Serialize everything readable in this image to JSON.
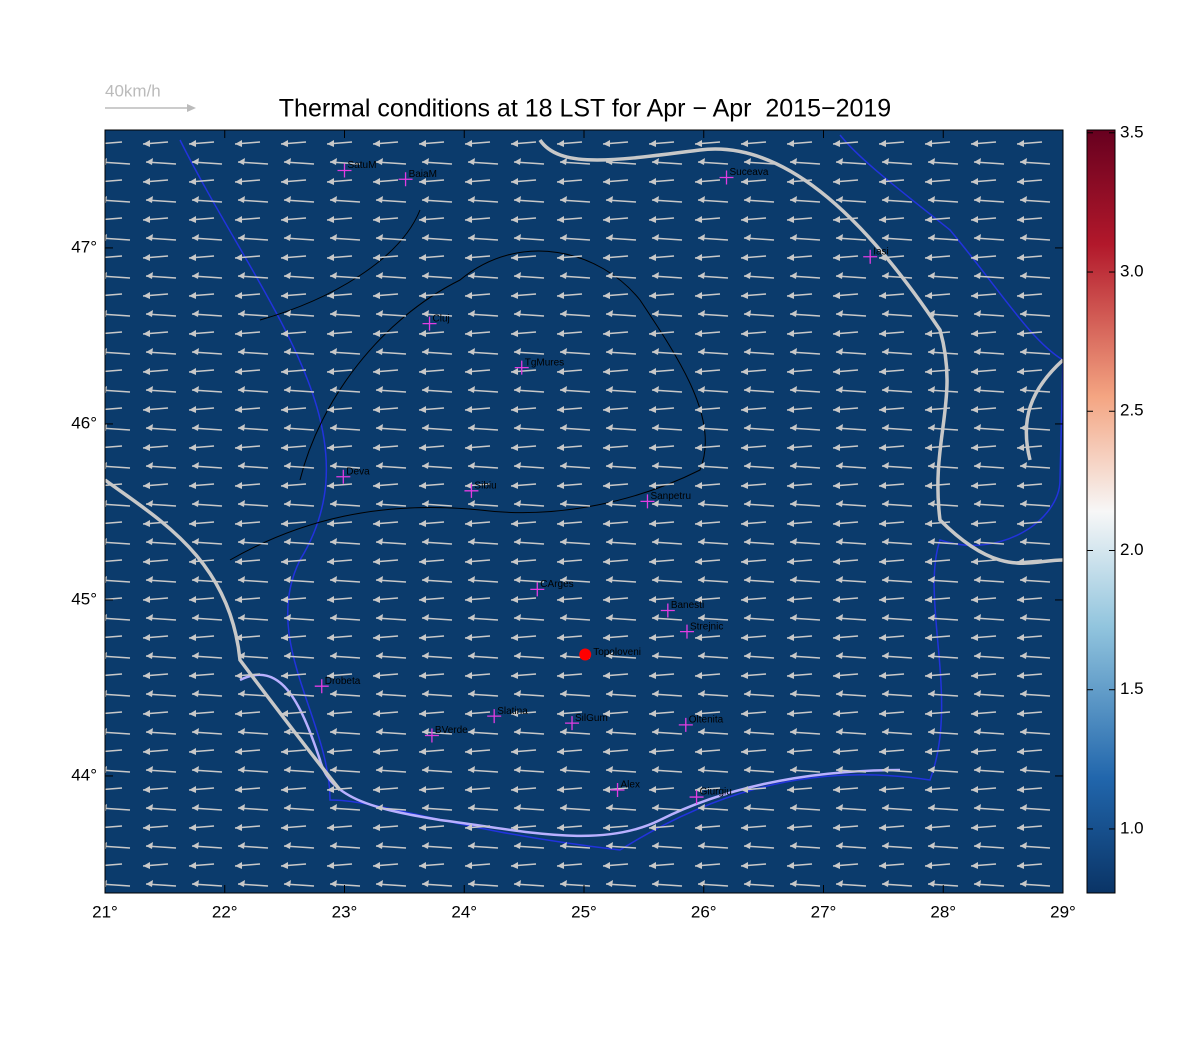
{
  "title": "Thermal conditions at 18 LST for Apr − Apr  2015−2019",
  "vector_key": {
    "label": "40km/h"
  },
  "map": {
    "xlim": [
      21,
      29
    ],
    "ylim": [
      43.335,
      47.67
    ],
    "background": "#0b3b6c",
    "xticks": [
      {
        "value": 21,
        "label": "21°"
      },
      {
        "value": 22,
        "label": "22°"
      },
      {
        "value": 23,
        "label": "23°"
      },
      {
        "value": 24,
        "label": "24°"
      },
      {
        "value": 25,
        "label": "25°"
      },
      {
        "value": 26,
        "label": "26°"
      },
      {
        "value": 27,
        "label": "27°"
      },
      {
        "value": 28,
        "label": "28°"
      },
      {
        "value": 29,
        "label": "29°"
      }
    ],
    "yticks": [
      {
        "value": 44,
        "label": "44°"
      },
      {
        "value": 45,
        "label": "45°"
      },
      {
        "value": 46,
        "label": "46°"
      },
      {
        "value": 47,
        "label": "47°"
      }
    ]
  },
  "stations": [
    {
      "name": "SatuM",
      "lon": 23.0,
      "lat": 47.44
    },
    {
      "name": "BaiaM",
      "lon": 23.51,
      "lat": 47.39
    },
    {
      "name": "Suceava",
      "lon": 26.19,
      "lat": 47.4
    },
    {
      "name": "Iasi",
      "lon": 27.39,
      "lat": 46.95
    },
    {
      "name": "Cluj",
      "lon": 23.71,
      "lat": 46.57
    },
    {
      "name": "TgMures",
      "lon": 24.48,
      "lat": 46.32
    },
    {
      "name": "Deva",
      "lon": 22.99,
      "lat": 45.7
    },
    {
      "name": "Sibiu",
      "lon": 24.06,
      "lat": 45.62
    },
    {
      "name": "Sanpetru",
      "lon": 25.53,
      "lat": 45.56
    },
    {
      "name": "CArges",
      "lon": 24.61,
      "lat": 45.06
    },
    {
      "name": "Banesti",
      "lon": 25.7,
      "lat": 44.94
    },
    {
      "name": "Strejnic",
      "lon": 25.86,
      "lat": 44.82
    },
    {
      "name": "Drobeta",
      "lon": 22.81,
      "lat": 44.51
    },
    {
      "name": "Slatina",
      "lon": 24.25,
      "lat": 44.34
    },
    {
      "name": "SilGum",
      "lon": 24.9,
      "lat": 44.3
    },
    {
      "name": "Oltenita",
      "lon": 25.85,
      "lat": 44.29
    },
    {
      "name": "BVerde",
      "lon": 23.73,
      "lat": 44.23
    },
    {
      "name": "Alex",
      "lon": 25.28,
      "lat": 43.92
    },
    {
      "name": "Giurgiu",
      "lon": 25.94,
      "lat": 43.88
    }
  ],
  "site": {
    "name": "Topoloveni",
    "lon": 25.01,
    "lat": 44.69,
    "color": "#ff0000"
  },
  "colorbar": {
    "lim": [
      0.77,
      3.51
    ],
    "ticks": [
      {
        "value": 1,
        "label": "1.0"
      },
      {
        "value": 1.5,
        "label": "1.5"
      },
      {
        "value": 2,
        "label": "2.0"
      },
      {
        "value": 2.5,
        "label": "2.5"
      },
      {
        "value": 3,
        "label": "3.0"
      },
      3.5
    ]
  }
}
